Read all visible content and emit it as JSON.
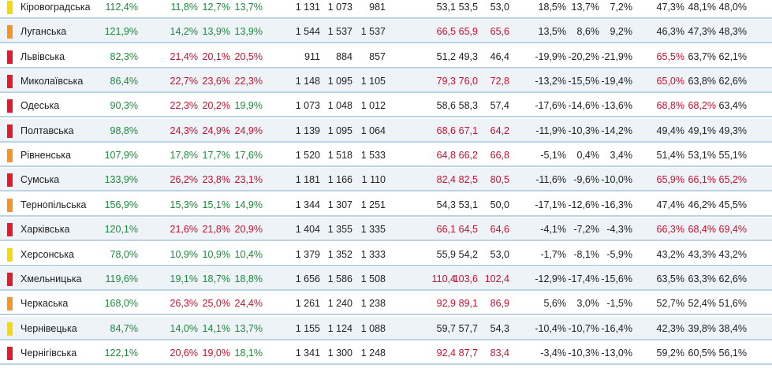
{
  "colors": {
    "red": "#c8102e",
    "green": "#1c8a3c",
    "dark": "#222222",
    "marker_red": "#e21b2c",
    "marker_orange": "#f2962a",
    "marker_yellow": "#f5d90a"
  },
  "rows": [
    {
      "marker": "yellow",
      "name": "Кіровоградська",
      "cells": [
        {
          "v": "112,4%",
          "c": "green"
        },
        {
          "v": "11,8%",
          "c": "green"
        },
        {
          "v": "12,7%",
          "c": "green"
        },
        {
          "v": "13,7%",
          "c": "green"
        },
        {
          "v": "1 131",
          "c": "dark"
        },
        {
          "v": "1 073",
          "c": "dark"
        },
        {
          "v": "981",
          "c": "dark"
        },
        {
          "v": "53,1",
          "c": "dark"
        },
        {
          "v": "53,5",
          "c": "dark"
        },
        {
          "v": "53,0",
          "c": "dark"
        },
        {
          "v": "18,5%",
          "c": "dark"
        },
        {
          "v": "13,7%",
          "c": "dark"
        },
        {
          "v": "7,2%",
          "c": "dark"
        },
        {
          "v": "47,3%",
          "c": "dark"
        },
        {
          "v": "48,1%",
          "c": "dark"
        },
        {
          "v": "48,0%",
          "c": "dark"
        }
      ]
    },
    {
      "marker": "orange",
      "name": "Луганська",
      "cells": [
        {
          "v": "121,9%",
          "c": "green"
        },
        {
          "v": "14,2%",
          "c": "green"
        },
        {
          "v": "13,9%",
          "c": "green"
        },
        {
          "v": "13,9%",
          "c": "green"
        },
        {
          "v": "1 544",
          "c": "dark"
        },
        {
          "v": "1 537",
          "c": "dark"
        },
        {
          "v": "1 537",
          "c": "dark"
        },
        {
          "v": "66,5",
          "c": "red"
        },
        {
          "v": "65,9",
          "c": "red"
        },
        {
          "v": "65,6",
          "c": "red"
        },
        {
          "v": "13,5%",
          "c": "dark"
        },
        {
          "v": "8,6%",
          "c": "dark"
        },
        {
          "v": "9,2%",
          "c": "dark"
        },
        {
          "v": "46,3%",
          "c": "dark"
        },
        {
          "v": "47,3%",
          "c": "dark"
        },
        {
          "v": "48,3%",
          "c": "dark"
        }
      ]
    },
    {
      "marker": "red",
      "name": "Львівська",
      "cells": [
        {
          "v": "82,3%",
          "c": "green"
        },
        {
          "v": "21,4%",
          "c": "red"
        },
        {
          "v": "20,1%",
          "c": "red"
        },
        {
          "v": "20,5%",
          "c": "red"
        },
        {
          "v": "911",
          "c": "dark"
        },
        {
          "v": "884",
          "c": "dark"
        },
        {
          "v": "857",
          "c": "dark"
        },
        {
          "v": "51,2",
          "c": "dark"
        },
        {
          "v": "49,3",
          "c": "dark"
        },
        {
          "v": "46,4",
          "c": "dark"
        },
        {
          "v": "-19,9%",
          "c": "dark"
        },
        {
          "v": "-20,2%",
          "c": "dark"
        },
        {
          "v": "-21,9%",
          "c": "dark"
        },
        {
          "v": "65,5%",
          "c": "red"
        },
        {
          "v": "63,7%",
          "c": "dark"
        },
        {
          "v": "62,1%",
          "c": "dark"
        }
      ]
    },
    {
      "marker": "red",
      "name": "Миколаївська",
      "cells": [
        {
          "v": "86,4%",
          "c": "green"
        },
        {
          "v": "22,7%",
          "c": "red"
        },
        {
          "v": "23,6%",
          "c": "red"
        },
        {
          "v": "22,3%",
          "c": "red"
        },
        {
          "v": "1 148",
          "c": "dark"
        },
        {
          "v": "1 095",
          "c": "dark"
        },
        {
          "v": "1 105",
          "c": "dark"
        },
        {
          "v": "79,3",
          "c": "red"
        },
        {
          "v": "76,0",
          "c": "red"
        },
        {
          "v": "72,8",
          "c": "red"
        },
        {
          "v": "-13,2%",
          "c": "dark"
        },
        {
          "v": "-15,5%",
          "c": "dark"
        },
        {
          "v": "-19,4%",
          "c": "dark"
        },
        {
          "v": "65,0%",
          "c": "red"
        },
        {
          "v": "63,8%",
          "c": "dark"
        },
        {
          "v": "62,6%",
          "c": "dark"
        }
      ]
    },
    {
      "marker": "red",
      "name": "Одеська",
      "cells": [
        {
          "v": "90,3%",
          "c": "green"
        },
        {
          "v": "22,3%",
          "c": "red"
        },
        {
          "v": "20,2%",
          "c": "red"
        },
        {
          "v": "19,9%",
          "c": "green"
        },
        {
          "v": "1 073",
          "c": "dark"
        },
        {
          "v": "1 048",
          "c": "dark"
        },
        {
          "v": "1 012",
          "c": "dark"
        },
        {
          "v": "58,6",
          "c": "dark"
        },
        {
          "v": "58,3",
          "c": "dark"
        },
        {
          "v": "57,4",
          "c": "dark"
        },
        {
          "v": "-17,6%",
          "c": "dark"
        },
        {
          "v": "-14,6%",
          "c": "dark"
        },
        {
          "v": "-13,6%",
          "c": "dark"
        },
        {
          "v": "68,8%",
          "c": "red"
        },
        {
          "v": "68,2%",
          "c": "red"
        },
        {
          "v": "63,4%",
          "c": "dark"
        }
      ]
    },
    {
      "marker": "red",
      "name": "Полтавська",
      "cells": [
        {
          "v": "98,8%",
          "c": "green"
        },
        {
          "v": "24,3%",
          "c": "red"
        },
        {
          "v": "24,9%",
          "c": "red"
        },
        {
          "v": "24,9%",
          "c": "red"
        },
        {
          "v": "1 139",
          "c": "dark"
        },
        {
          "v": "1 095",
          "c": "dark"
        },
        {
          "v": "1 064",
          "c": "dark"
        },
        {
          "v": "68,6",
          "c": "red"
        },
        {
          "v": "67,1",
          "c": "red"
        },
        {
          "v": "64,2",
          "c": "red"
        },
        {
          "v": "-11,9%",
          "c": "dark"
        },
        {
          "v": "-10,3%",
          "c": "dark"
        },
        {
          "v": "-14,2%",
          "c": "dark"
        },
        {
          "v": "49,4%",
          "c": "dark"
        },
        {
          "v": "49,1%",
          "c": "dark"
        },
        {
          "v": "49,3%",
          "c": "dark"
        }
      ]
    },
    {
      "marker": "orange",
      "name": "Рівненська",
      "cells": [
        {
          "v": "107,9%",
          "c": "green"
        },
        {
          "v": "17,8%",
          "c": "green"
        },
        {
          "v": "17,7%",
          "c": "green"
        },
        {
          "v": "17,6%",
          "c": "green"
        },
        {
          "v": "1 520",
          "c": "dark"
        },
        {
          "v": "1 518",
          "c": "dark"
        },
        {
          "v": "1 533",
          "c": "dark"
        },
        {
          "v": "64,8",
          "c": "red"
        },
        {
          "v": "66,2",
          "c": "red"
        },
        {
          "v": "66,8",
          "c": "red"
        },
        {
          "v": "-5,1%",
          "c": "dark"
        },
        {
          "v": "0,4%",
          "c": "dark"
        },
        {
          "v": "3,4%",
          "c": "dark"
        },
        {
          "v": "51,4%",
          "c": "dark"
        },
        {
          "v": "53,1%",
          "c": "dark"
        },
        {
          "v": "55,1%",
          "c": "dark"
        }
      ]
    },
    {
      "marker": "red",
      "name": "Сумська",
      "cells": [
        {
          "v": "133,9%",
          "c": "green"
        },
        {
          "v": "26,2%",
          "c": "red"
        },
        {
          "v": "23,8%",
          "c": "red"
        },
        {
          "v": "23,1%",
          "c": "red"
        },
        {
          "v": "1 181",
          "c": "dark"
        },
        {
          "v": "1 166",
          "c": "dark"
        },
        {
          "v": "1 110",
          "c": "dark"
        },
        {
          "v": "82,4",
          "c": "red"
        },
        {
          "v": "82,5",
          "c": "red"
        },
        {
          "v": "80,5",
          "c": "red"
        },
        {
          "v": "-11,6%",
          "c": "dark"
        },
        {
          "v": "-9,6%",
          "c": "dark"
        },
        {
          "v": "-10,0%",
          "c": "dark"
        },
        {
          "v": "65,9%",
          "c": "red"
        },
        {
          "v": "66,1%",
          "c": "red"
        },
        {
          "v": "65,2%",
          "c": "red"
        }
      ]
    },
    {
      "marker": "orange",
      "name": "Тернопільська",
      "cells": [
        {
          "v": "156,9%",
          "c": "green"
        },
        {
          "v": "15,3%",
          "c": "green"
        },
        {
          "v": "15,1%",
          "c": "green"
        },
        {
          "v": "14,9%",
          "c": "green"
        },
        {
          "v": "1 344",
          "c": "dark"
        },
        {
          "v": "1 307",
          "c": "dark"
        },
        {
          "v": "1 251",
          "c": "dark"
        },
        {
          "v": "54,3",
          "c": "dark"
        },
        {
          "v": "53,1",
          "c": "dark"
        },
        {
          "v": "50,0",
          "c": "dark"
        },
        {
          "v": "-17,1%",
          "c": "dark"
        },
        {
          "v": "-12,6%",
          "c": "dark"
        },
        {
          "v": "-16,3%",
          "c": "dark"
        },
        {
          "v": "47,4%",
          "c": "dark"
        },
        {
          "v": "46,2%",
          "c": "dark"
        },
        {
          "v": "45,5%",
          "c": "dark"
        }
      ]
    },
    {
      "marker": "red",
      "name": "Харківська",
      "cells": [
        {
          "v": "120,1%",
          "c": "green"
        },
        {
          "v": "21,6%",
          "c": "red"
        },
        {
          "v": "21,8%",
          "c": "red"
        },
        {
          "v": "20,9%",
          "c": "red"
        },
        {
          "v": "1 404",
          "c": "dark"
        },
        {
          "v": "1 355",
          "c": "dark"
        },
        {
          "v": "1 335",
          "c": "dark"
        },
        {
          "v": "66,1",
          "c": "red"
        },
        {
          "v": "64,5",
          "c": "red"
        },
        {
          "v": "64,6",
          "c": "red"
        },
        {
          "v": "-4,1%",
          "c": "dark"
        },
        {
          "v": "-7,2%",
          "c": "dark"
        },
        {
          "v": "-4,3%",
          "c": "dark"
        },
        {
          "v": "66,3%",
          "c": "red"
        },
        {
          "v": "68,4%",
          "c": "red"
        },
        {
          "v": "69,4%",
          "c": "red"
        }
      ]
    },
    {
      "marker": "yellow",
      "name": "Херсонська",
      "cells": [
        {
          "v": "78,0%",
          "c": "green"
        },
        {
          "v": "10,9%",
          "c": "green"
        },
        {
          "v": "10,9%",
          "c": "green"
        },
        {
          "v": "10,4%",
          "c": "green"
        },
        {
          "v": "1 379",
          "c": "dark"
        },
        {
          "v": "1 352",
          "c": "dark"
        },
        {
          "v": "1 333",
          "c": "dark"
        },
        {
          "v": "55,9",
          "c": "dark"
        },
        {
          "v": "54,2",
          "c": "dark"
        },
        {
          "v": "53,0",
          "c": "dark"
        },
        {
          "v": "-1,7%",
          "c": "dark"
        },
        {
          "v": "-8,1%",
          "c": "dark"
        },
        {
          "v": "-5,9%",
          "c": "dark"
        },
        {
          "v": "43,2%",
          "c": "dark"
        },
        {
          "v": "43,3%",
          "c": "dark"
        },
        {
          "v": "43,2%",
          "c": "dark"
        }
      ]
    },
    {
      "marker": "red",
      "name": "Хмельницька",
      "cells": [
        {
          "v": "119,6%",
          "c": "green"
        },
        {
          "v": "19,1%",
          "c": "green"
        },
        {
          "v": "18,7%",
          "c": "green"
        },
        {
          "v": "18,8%",
          "c": "green"
        },
        {
          "v": "1 656",
          "c": "dark"
        },
        {
          "v": "1 586",
          "c": "dark"
        },
        {
          "v": "1 508",
          "c": "dark"
        },
        {
          "v": "110,4",
          "c": "red"
        },
        {
          "v": "103,6",
          "c": "red"
        },
        {
          "v": "102,4",
          "c": "red"
        },
        {
          "v": "-12,9%",
          "c": "dark"
        },
        {
          "v": "-17,4%",
          "c": "dark"
        },
        {
          "v": "-15,6%",
          "c": "dark"
        },
        {
          "v": "63,5%",
          "c": "dark"
        },
        {
          "v": "63,3%",
          "c": "dark"
        },
        {
          "v": "62,6%",
          "c": "dark"
        }
      ]
    },
    {
      "marker": "orange",
      "name": "Черкаська",
      "cells": [
        {
          "v": "168,0%",
          "c": "green"
        },
        {
          "v": "26,3%",
          "c": "red"
        },
        {
          "v": "25,0%",
          "c": "red"
        },
        {
          "v": "24,4%",
          "c": "red"
        },
        {
          "v": "1 261",
          "c": "dark"
        },
        {
          "v": "1 240",
          "c": "dark"
        },
        {
          "v": "1 238",
          "c": "dark"
        },
        {
          "v": "92,9",
          "c": "red"
        },
        {
          "v": "89,1",
          "c": "red"
        },
        {
          "v": "86,9",
          "c": "red"
        },
        {
          "v": "5,6%",
          "c": "dark"
        },
        {
          "v": "3,0%",
          "c": "dark"
        },
        {
          "v": "-1,5%",
          "c": "dark"
        },
        {
          "v": "52,7%",
          "c": "dark"
        },
        {
          "v": "52,4%",
          "c": "dark"
        },
        {
          "v": "51,6%",
          "c": "dark"
        }
      ]
    },
    {
      "marker": "yellow",
      "name": "Чернівецька",
      "cells": [
        {
          "v": "84,7%",
          "c": "green"
        },
        {
          "v": "14,0%",
          "c": "green"
        },
        {
          "v": "14,1%",
          "c": "green"
        },
        {
          "v": "13,7%",
          "c": "green"
        },
        {
          "v": "1 155",
          "c": "dark"
        },
        {
          "v": "1 124",
          "c": "dark"
        },
        {
          "v": "1 088",
          "c": "dark"
        },
        {
          "v": "59,7",
          "c": "dark"
        },
        {
          "v": "57,7",
          "c": "dark"
        },
        {
          "v": "54,3",
          "c": "dark"
        },
        {
          "v": "-10,4%",
          "c": "dark"
        },
        {
          "v": "-10,7%",
          "c": "dark"
        },
        {
          "v": "-16,4%",
          "c": "dark"
        },
        {
          "v": "42,3%",
          "c": "dark"
        },
        {
          "v": "39,8%",
          "c": "dark"
        },
        {
          "v": "38,4%",
          "c": "dark"
        }
      ]
    },
    {
      "marker": "red",
      "name": "Чернігівська",
      "cells": [
        {
          "v": "122,1%",
          "c": "green"
        },
        {
          "v": "20,6%",
          "c": "red"
        },
        {
          "v": "19,0%",
          "c": "red"
        },
        {
          "v": "18,1%",
          "c": "green"
        },
        {
          "v": "1 341",
          "c": "dark"
        },
        {
          "v": "1 300",
          "c": "dark"
        },
        {
          "v": "1 248",
          "c": "dark"
        },
        {
          "v": "92,4",
          "c": "red"
        },
        {
          "v": "87,7",
          "c": "red"
        },
        {
          "v": "83,4",
          "c": "red"
        },
        {
          "v": "-3,4%",
          "c": "dark"
        },
        {
          "v": "-10,3%",
          "c": "dark"
        },
        {
          "v": "-13,0%",
          "c": "dark"
        },
        {
          "v": "59,2%",
          "c": "dark"
        },
        {
          "v": "60,5%",
          "c": "dark"
        },
        {
          "v": "56,1%",
          "c": "dark"
        }
      ]
    }
  ]
}
